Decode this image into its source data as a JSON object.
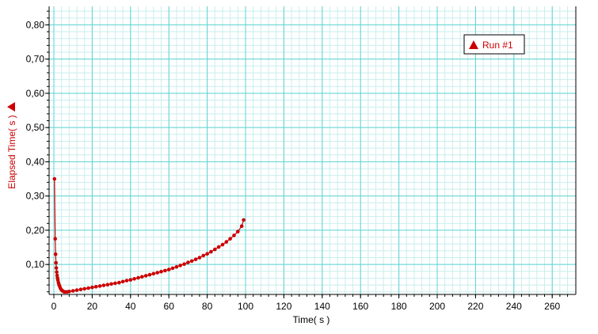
{
  "colors": {
    "series": "#cc0000",
    "major_grid": "#5fd3d3",
    "minor_grid": "#c9eeee",
    "axis": "#000000"
  },
  "chart_data": {
    "type": "scatter",
    "xlabel": "Time( s )",
    "ylabel": "Elapsed Time( s )",
    "xlim": [
      0,
      270
    ],
    "ylim": [
      0.01,
      0.84
    ],
    "x_ticks": [
      0,
      20,
      40,
      60,
      80,
      100,
      120,
      140,
      160,
      180,
      200,
      220,
      240,
      260
    ],
    "y_ticks": [
      0.1,
      0.2,
      0.3,
      0.4,
      0.5,
      0.6,
      0.7,
      0.8
    ],
    "x_tick_labels": [
      "0",
      "20",
      "40",
      "60",
      "80",
      "100",
      "120",
      "140",
      "160",
      "180",
      "200",
      "220",
      "240",
      "260"
    ],
    "y_tick_labels": [
      "0,10",
      "0,20",
      "0,30",
      "0,40",
      "0,50",
      "0,60",
      "0,70",
      "0,80"
    ],
    "grid": true,
    "legend": {
      "position": "top-right",
      "marker": "triangle-icon"
    },
    "series": [
      {
        "name": "Run #1",
        "color": "#cc0000",
        "x": [
          0.35,
          0.7,
          0.9,
          1.1,
          1.3,
          1.5,
          1.7,
          1.9,
          2.1,
          2.4,
          2.7,
          3.0,
          3.4,
          3.8,
          4.3,
          4.8,
          5.4,
          6.0,
          7.0,
          8.0,
          10,
          12,
          14,
          16,
          18,
          20,
          22,
          24,
          26,
          28,
          30,
          32,
          34,
          36,
          38,
          40,
          42,
          44,
          46,
          48,
          50,
          52,
          54,
          56,
          58,
          60,
          62,
          64,
          66,
          68,
          70,
          72,
          74,
          76,
          78,
          80,
          82,
          84,
          86,
          88,
          90,
          92,
          94,
          96,
          98,
          99
        ],
        "y": [
          0.35,
          0.175,
          0.13,
          0.105,
          0.09,
          0.078,
          0.068,
          0.06,
          0.054,
          0.047,
          0.041,
          0.036,
          0.031,
          0.027,
          0.024,
          0.022,
          0.02,
          0.02,
          0.02,
          0.021,
          0.023,
          0.025,
          0.027,
          0.029,
          0.031,
          0.033,
          0.035,
          0.037,
          0.039,
          0.041,
          0.043,
          0.045,
          0.047,
          0.05,
          0.053,
          0.055,
          0.058,
          0.061,
          0.064,
          0.067,
          0.07,
          0.073,
          0.076,
          0.079,
          0.082,
          0.085,
          0.089,
          0.093,
          0.097,
          0.101,
          0.106,
          0.11,
          0.115,
          0.12,
          0.126,
          0.131,
          0.137,
          0.144,
          0.151,
          0.158,
          0.166,
          0.175,
          0.185,
          0.196,
          0.212,
          0.23
        ]
      }
    ]
  }
}
